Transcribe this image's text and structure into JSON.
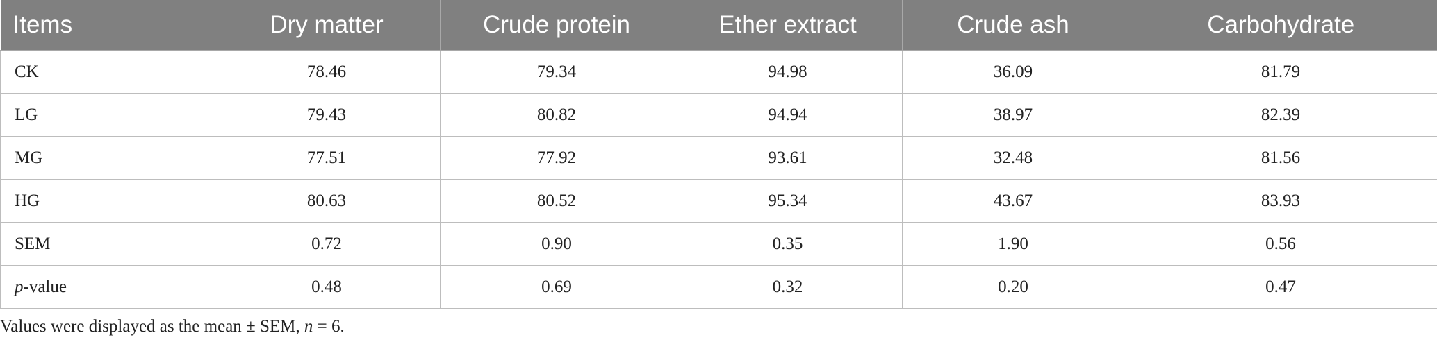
{
  "table": {
    "header": [
      "Items",
      "Dry matter",
      "Crude protein",
      "Ether extract",
      "Crude ash",
      "Carbohydrate"
    ],
    "rows": [
      {
        "label": "CK",
        "cells": [
          "78.46",
          "79.34",
          "94.98",
          "36.09",
          "81.79"
        ]
      },
      {
        "label": "LG",
        "cells": [
          "79.43",
          "80.82",
          "94.94",
          "38.97",
          "82.39"
        ]
      },
      {
        "label": "MG",
        "cells": [
          "77.51",
          "77.92",
          "93.61",
          "32.48",
          "81.56"
        ]
      },
      {
        "label": "HG",
        "cells": [
          "80.63",
          "80.52",
          "95.34",
          "43.67",
          "83.93"
        ]
      },
      {
        "label": "SEM",
        "cells": [
          "0.72",
          "0.90",
          "0.35",
          "1.90",
          "0.56"
        ]
      },
      {
        "label_italic": "p",
        "label": "-value",
        "cells": [
          "0.48",
          "0.69",
          "0.32",
          "0.20",
          "0.47"
        ]
      }
    ]
  },
  "footnote": [
    "Values were displayed as the mean ± SEM, ",
    "n",
    " = 6."
  ]
}
